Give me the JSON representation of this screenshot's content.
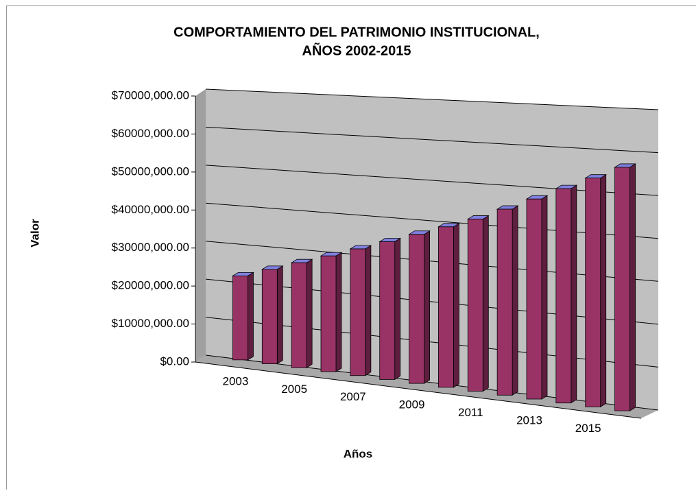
{
  "chart_data": {
    "type": "bar",
    "title": "COMPORTAMIENTO DEL PATRIMONIO INSTITUCIONAL,",
    "subtitle": "AÑOS 2002-2015",
    "x_label": "Años",
    "y_label": "Valor",
    "categories": [
      "2003",
      null,
      "2005",
      null,
      "2007",
      null,
      "2009",
      null,
      "2011",
      null,
      "2013",
      null,
      "2015",
      null
    ],
    "values": [
      22000000,
      24500000,
      27000000,
      29500000,
      32000000,
      34500000,
      37000000,
      39500000,
      42000000,
      45000000,
      48000000,
      51000000,
      54000000,
      57000000
    ],
    "color": "#993366",
    "ylim": [
      0,
      70000000
    ],
    "yticks": [
      {
        "value": 0,
        "label": "$0.00"
      },
      {
        "value": 10000000,
        "label": "$10000,000.00"
      },
      {
        "value": 20000000,
        "label": "$20000,000.00"
      },
      {
        "value": 30000000,
        "label": "$30000,000.00"
      },
      {
        "value": 40000000,
        "label": "$40000,000.00"
      },
      {
        "value": 50000000,
        "label": "$50000,000.00"
      },
      {
        "value": 60000000,
        "label": "$60000,000.00"
      },
      {
        "value": 70000000,
        "label": "$70000,000.00"
      }
    ],
    "grid": true
  }
}
